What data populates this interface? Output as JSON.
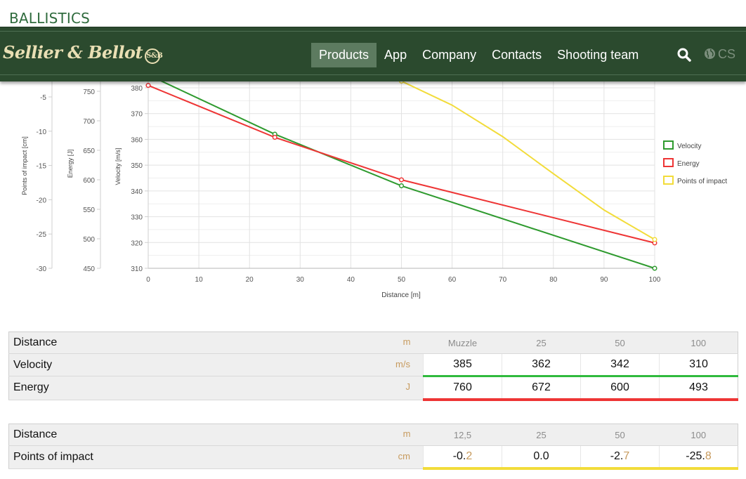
{
  "page": {
    "section_title": "BALLISTICS"
  },
  "nav": {
    "brand": "Sellier & Bellot",
    "brand_seal": "S&B",
    "links": [
      "Products",
      "App",
      "Company",
      "Contacts",
      "Shooting team"
    ],
    "active": "Products",
    "lang": "CS",
    "icons": {
      "search": "search-icon",
      "globe": "globe-icon"
    }
  },
  "colors": {
    "nav_bg": "#2b4a2e",
    "velocity": "#2e9a2e",
    "energy": "#ee3535",
    "poi": "#f2dc3a",
    "unit": "#c79a5d"
  },
  "chart_data": {
    "type": "line",
    "xlabel": "Distance [m]",
    "xlim": [
      0,
      100
    ],
    "xticks": [
      0,
      10,
      20,
      30,
      40,
      50,
      60,
      70,
      80,
      90,
      100
    ],
    "axes": {
      "velocity": {
        "label": "Velocity [m/s]",
        "range": [
          310,
          385
        ],
        "ticks": [
          310,
          320,
          330,
          340,
          350,
          360,
          370,
          380
        ]
      },
      "energy": {
        "label": "Energy [J]",
        "range": [
          450,
          760
        ],
        "ticks": [
          450,
          500,
          550,
          600,
          650,
          700,
          750
        ]
      },
      "poi": {
        "label": "Points of impact [cm]",
        "range": [
          -30,
          -2
        ],
        "ticks": [
          -30,
          -25,
          -20,
          -15,
          -10,
          -5
        ]
      }
    },
    "series": [
      {
        "name": "Velocity",
        "axis": "velocity",
        "color": "#2e9a2e",
        "x": [
          0,
          25,
          50,
          100
        ],
        "y": [
          385,
          362,
          342,
          310
        ]
      },
      {
        "name": "Energy",
        "axis": "energy",
        "color": "#ee3535",
        "x": [
          0,
          25,
          50,
          100
        ],
        "y": [
          760,
          672,
          600,
          493
        ]
      },
      {
        "name": "Points of impact",
        "axis": "poi",
        "color": "#f2dc3a",
        "x": [
          50,
          60,
          70,
          80,
          90,
          100
        ],
        "y": [
          -2.7,
          -6.2,
          -10.8,
          -16.2,
          -21.5,
          -25.8
        ]
      }
    ],
    "legend": [
      "Velocity",
      "Energy",
      "Points of impact"
    ],
    "legend_position": "right",
    "grid": true
  },
  "table1": {
    "rows": [
      {
        "label": "Distance",
        "unit": "m",
        "values": [
          "Muzzle",
          "25",
          "50",
          "100"
        ]
      },
      {
        "label": "Velocity",
        "unit": "m/s",
        "values": [
          "385",
          "362",
          "342",
          "310"
        ]
      },
      {
        "label": "Energy",
        "unit": "J",
        "values": [
          "760",
          "672",
          "600",
          "493"
        ]
      }
    ]
  },
  "table2": {
    "rows": [
      {
        "label": "Distance",
        "unit": "m",
        "values": [
          "12,5",
          "25",
          "50",
          "100"
        ]
      },
      {
        "label": "Points of impact",
        "unit": "cm",
        "values_main": [
          "-0.",
          "0.0",
          "-2.",
          "-25."
        ],
        "values_frac": [
          "2",
          "",
          "7",
          "8"
        ]
      }
    ]
  }
}
